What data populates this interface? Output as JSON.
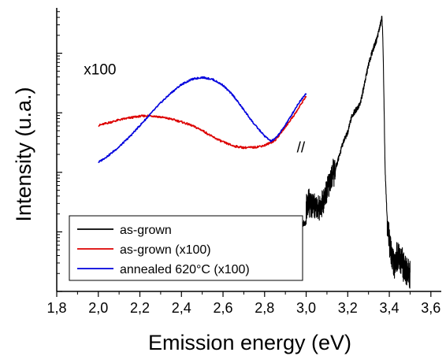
{
  "chart_data": {
    "type": "line",
    "title": "",
    "xlabel": "Emission energy (eV)",
    "ylabel": "Intensity (u.a.)",
    "xlim": [
      1.8,
      3.65
    ],
    "ylim": [
      0,
      1
    ],
    "yscale": "log",
    "y_tick_labels_shown": false,
    "grid": false,
    "legend_position": "bottom-left",
    "x_tick_labels": [
      "1,8",
      "2,0",
      "2,2",
      "2,4",
      "2,6",
      "2,8",
      "3,0",
      "3,2",
      "3,4",
      "3,6"
    ],
    "x_ticks": [
      1.8,
      2.0,
      2.2,
      2.4,
      2.6,
      2.8,
      3.0,
      3.2,
      3.4,
      3.6
    ],
    "series": [
      {
        "name": "as-grown",
        "color": "#000000",
        "x": [
          2.94,
          2.96,
          2.98,
          3.0,
          3.0,
          3.02,
          3.04,
          3.06,
          3.08,
          3.1,
          3.12,
          3.14,
          3.16,
          3.18,
          3.2,
          3.22,
          3.24,
          3.26,
          3.28,
          3.3,
          3.32,
          3.34,
          3.36,
          3.365,
          3.37,
          3.38,
          3.39,
          3.4,
          3.42,
          3.44,
          3.46,
          3.48,
          3.5
        ],
        "values": [
          0.24,
          0.24,
          0.24,
          0.24,
          0.31,
          0.31,
          0.3,
          0.29,
          0.31,
          0.36,
          0.4,
          0.43,
          0.48,
          0.53,
          0.56,
          0.62,
          0.64,
          0.66,
          0.73,
          0.8,
          0.85,
          0.89,
          0.95,
          0.97,
          0.86,
          0.42,
          0.25,
          0.18,
          0.1,
          0.12,
          0.11,
          0.07,
          0.06
        ]
      },
      {
        "name": "as-grown (x100)",
        "color": "#dd0000",
        "x": [
          2.0,
          2.05,
          2.1,
          2.15,
          2.2,
          2.25,
          2.3,
          2.35,
          2.4,
          2.45,
          2.5,
          2.55,
          2.6,
          2.65,
          2.7,
          2.75,
          2.8,
          2.85,
          2.9,
          2.95,
          3.0
        ],
        "values": [
          0.585,
          0.595,
          0.605,
          0.612,
          0.618,
          0.62,
          0.615,
          0.608,
          0.598,
          0.585,
          0.568,
          0.545,
          0.527,
          0.513,
          0.507,
          0.508,
          0.515,
          0.532,
          0.58,
          0.63,
          0.69
        ]
      },
      {
        "name": "annealed 620°C (x100)",
        "color": "#0000dd",
        "x": [
          2.0,
          2.05,
          2.1,
          2.15,
          2.2,
          2.25,
          2.3,
          2.35,
          2.4,
          2.45,
          2.5,
          2.55,
          2.6,
          2.65,
          2.7,
          2.75,
          2.8,
          2.83,
          2.85,
          2.88,
          2.92,
          2.96,
          3.0
        ],
        "values": [
          0.455,
          0.48,
          0.51,
          0.545,
          0.585,
          0.625,
          0.665,
          0.7,
          0.73,
          0.748,
          0.755,
          0.748,
          0.727,
          0.69,
          0.64,
          0.59,
          0.548,
          0.53,
          0.538,
          0.565,
          0.61,
          0.66,
          0.7
        ]
      }
    ],
    "annotations": [
      {
        "text": "x100",
        "x": 1.93,
        "y": 0.765
      },
      {
        "text": "//",
        "x": 2.955,
        "y": 0.49
      }
    ]
  }
}
